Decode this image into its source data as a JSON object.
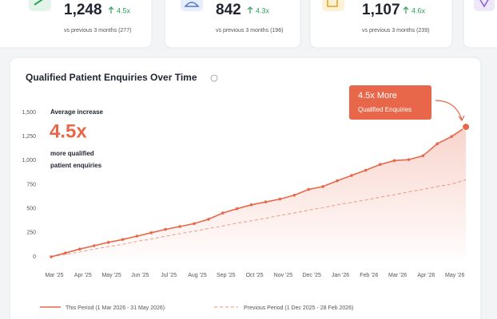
{
  "cards": [
    {
      "value": "1,248",
      "change": "4.5x",
      "note": "vs previous 3 months (277)"
    },
    {
      "value": "842",
      "change": "4.3x",
      "note": "vs previous 3 months (196)"
    },
    {
      "value": "1,107",
      "change": "4.6x",
      "note": "vs previous 3 months (239)"
    }
  ],
  "chart_data": {
    "type": "line",
    "title": "Qualified Patient Enquiries Over Time",
    "annotations": {
      "label": "Average increase",
      "big": "4.5x",
      "line1": "more qualified",
      "line2": "patient enquiries",
      "callout1": "4.5x More",
      "callout2": "Qualified Enquiries"
    },
    "categories": [
      "Mar '25",
      null,
      "Apr '25",
      null,
      "May '25",
      null,
      "Jun '25",
      null,
      "Jul '25",
      null,
      "Aug '25",
      null,
      "Sep '25",
      null,
      "Oct '25",
      null,
      "Nov '25",
      null,
      "Dec '25",
      null,
      "Jan '26",
      null,
      "Feb '26",
      null,
      "Mar '26",
      null,
      "Apr '26",
      null,
      "May '26",
      null
    ],
    "series": [
      {
        "name": "This Period (1 Mar 2026 - 31 May 2026)",
        "color": "#e8674a",
        "style": "solid",
        "values": [
          0,
          40,
          80,
          115,
          150,
          180,
          215,
          250,
          285,
          315,
          345,
          390,
          455,
          500,
          540,
          570,
          600,
          640,
          700,
          730,
          790,
          845,
          900,
          960,
          1000,
          1010,
          1050,
          1175,
          1250,
          1350
        ]
      },
      {
        "name": "Previous Period (1 Dec 2025 - 28 Feb 2026)",
        "color": "#f0a58f",
        "style": "dashed",
        "values": [
          0,
          25,
          50,
          80,
          105,
          130,
          160,
          185,
          215,
          240,
          265,
          295,
          320,
          350,
          375,
          400,
          430,
          455,
          485,
          510,
          540,
          565,
          590,
          620,
          645,
          675,
          700,
          730,
          755,
          800
        ]
      }
    ],
    "ylim": [
      0,
      1500
    ],
    "yticks": [
      0,
      250,
      500,
      750,
      {
        "value": 1000,
        "label": "1,000"
      },
      {
        "value": 1250,
        "label": "1,250"
      },
      {
        "value": 1500,
        "label": "1,500"
      }
    ],
    "grid": false
  }
}
